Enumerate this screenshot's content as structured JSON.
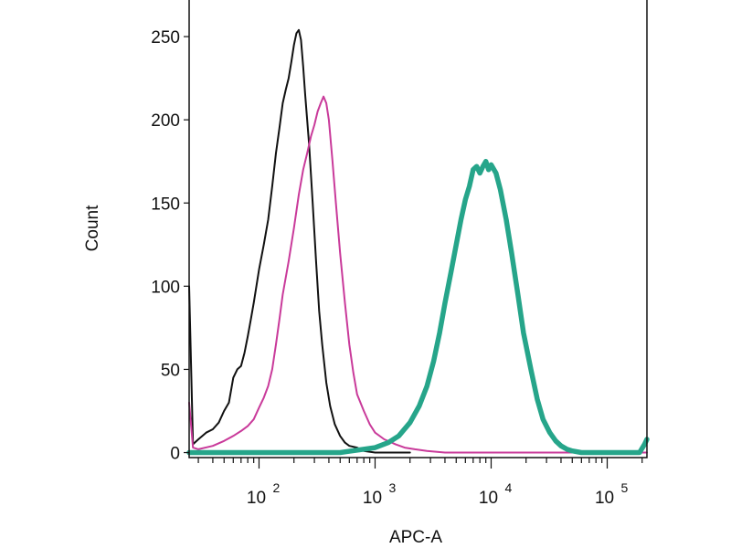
{
  "chart_data": {
    "type": "line",
    "xlabel": "APC-A",
    "ylabel": "Count",
    "xscale": "log",
    "xlim": [
      25,
      220000
    ],
    "ylim": [
      -3,
      272
    ],
    "yticks": [
      0,
      50,
      100,
      150,
      200,
      250
    ],
    "xticks": [
      {
        "value": 100,
        "base": "10",
        "exp": "2"
      },
      {
        "value": 1000,
        "base": "10",
        "exp": "3"
      },
      {
        "value": 10000,
        "base": "10",
        "exp": "4"
      },
      {
        "value": 100000,
        "base": "10",
        "exp": "5"
      }
    ],
    "grid": false,
    "series": [
      {
        "color": "#111111",
        "x": [
          25,
          27,
          30,
          35,
          40,
          45,
          50,
          55,
          60,
          65,
          70,
          75,
          80,
          85,
          90,
          100,
          110,
          120,
          130,
          140,
          150,
          160,
          170,
          180,
          190,
          200,
          210,
          220,
          230,
          240,
          250,
          270,
          290,
          310,
          330,
          350,
          380,
          410,
          450,
          500,
          550,
          600,
          700,
          800,
          1000,
          1200,
          1500,
          2000
        ],
        "y": [
          100,
          5,
          8,
          12,
          14,
          18,
          25,
          30,
          45,
          50,
          52,
          60,
          70,
          80,
          90,
          110,
          125,
          140,
          160,
          180,
          195,
          210,
          218,
          225,
          235,
          245,
          252,
          254,
          248,
          232,
          215,
          185,
          150,
          115,
          85,
          65,
          42,
          28,
          17,
          10,
          6,
          4,
          3,
          1,
          0,
          0,
          0,
          0
        ]
      },
      {
        "color": "#c93a9a",
        "x": [
          25,
          27,
          30,
          40,
          50,
          60,
          70,
          80,
          90,
          100,
          110,
          120,
          130,
          140,
          150,
          160,
          180,
          200,
          220,
          240,
          260,
          280,
          300,
          320,
          340,
          360,
          380,
          400,
          430,
          460,
          500,
          550,
          600,
          650,
          700,
          800,
          900,
          1000,
          1200,
          1500,
          1800,
          2200,
          2800,
          4000,
          7000,
          20000,
          100000,
          220000
        ],
        "y": [
          30,
          3,
          2,
          4,
          7,
          10,
          13,
          16,
          20,
          27,
          33,
          40,
          50,
          65,
          80,
          95,
          115,
          135,
          155,
          170,
          180,
          190,
          197,
          205,
          210,
          214,
          210,
          200,
          175,
          150,
          120,
          90,
          65,
          48,
          35,
          25,
          17,
          12,
          8,
          5,
          3,
          2,
          1,
          0,
          0,
          0,
          0,
          0
        ]
      },
      {
        "color": "#26a58a",
        "x": [
          25,
          500,
          1000,
          1300,
          1600,
          2000,
          2400,
          2800,
          3200,
          3600,
          4000,
          4500,
          5000,
          5500,
          6000,
          6500,
          7000,
          7500,
          8000,
          8500,
          9000,
          9500,
          10000,
          11000,
          12000,
          13500,
          15000,
          17000,
          19000,
          22000,
          25000,
          28000,
          32000,
          36000,
          40000,
          45000,
          50000,
          60000,
          80000,
          120000,
          190000,
          210000,
          220000
        ],
        "y": [
          0,
          0,
          3,
          6,
          10,
          18,
          28,
          40,
          55,
          72,
          90,
          108,
          125,
          140,
          152,
          160,
          170,
          172,
          168,
          172,
          175,
          170,
          173,
          168,
          158,
          140,
          120,
          95,
          72,
          50,
          32,
          20,
          12,
          7,
          4,
          2,
          1,
          0,
          0,
          0,
          0,
          5,
          8
        ]
      }
    ]
  }
}
